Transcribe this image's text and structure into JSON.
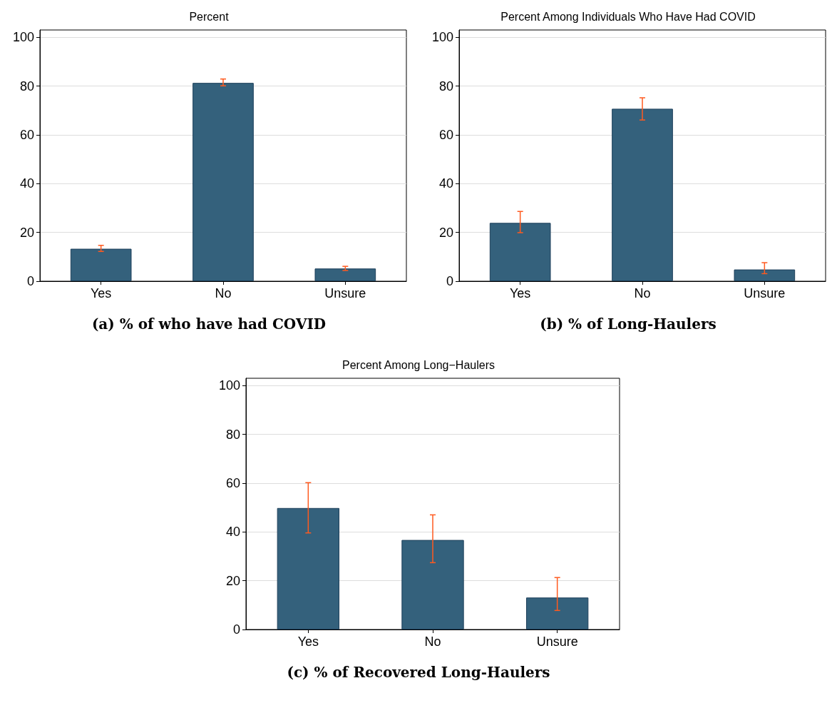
{
  "chart_data": [
    {
      "type": "bar",
      "title": "Percent",
      "categories": [
        "Yes",
        "No",
        "Unsure"
      ],
      "values": [
        13.3,
        81.3,
        5.2
      ],
      "color": "#34617c",
      "errors": [
        [
          12.2,
          14.7
        ],
        [
          80.1,
          82.9
        ],
        [
          4.4,
          6.1
        ]
      ],
      "ylim": [
        0,
        103
      ],
      "yticks": [
        0,
        20,
        40,
        60,
        80,
        100
      ],
      "grid": "y",
      "annotations": [
        "(a) % of who have had COVID"
      ]
    },
    {
      "type": "bar",
      "title": "Percent Among Individuals Who Have Had COVID",
      "categories": [
        "Yes",
        "No",
        "Unsure"
      ],
      "values": [
        23.9,
        70.7,
        4.8
      ],
      "color": "#34617c",
      "errors": [
        [
          19.9,
          28.6
        ],
        [
          66.1,
          75.2
        ],
        [
          3.1,
          7.6
        ]
      ],
      "ylim": [
        0,
        103
      ],
      "yticks": [
        0,
        20,
        40,
        60,
        80,
        100
      ],
      "grid": "y",
      "annotations": [
        "(b) % of Long-Haulers"
      ]
    },
    {
      "type": "bar",
      "title": "Percent Among Long−Haulers",
      "categories": [
        "Yes",
        "No",
        "Unsure"
      ],
      "values": [
        49.8,
        36.7,
        13.1
      ],
      "color": "#34617c",
      "errors": [
        [
          39.6,
          60.2
        ],
        [
          27.4,
          47.0
        ],
        [
          7.8,
          21.3
        ]
      ],
      "ylim": [
        0,
        103
      ],
      "yticks": [
        0,
        20,
        40,
        60,
        80,
        100
      ],
      "grid": "y",
      "annotations": [
        "(c) % of Recovered Long-Haulers"
      ]
    }
  ]
}
